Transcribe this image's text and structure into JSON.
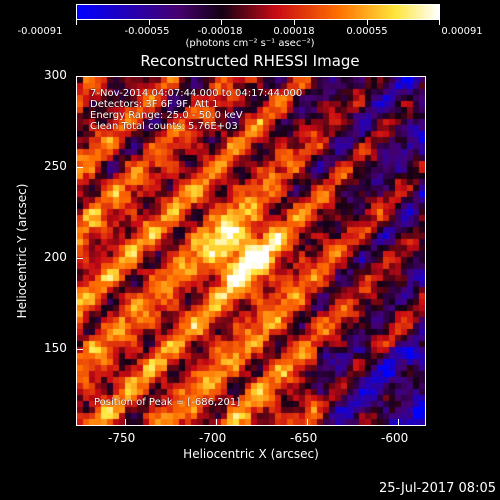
{
  "colorbar": {
    "tick_labels": [
      "-0.00091",
      "-0.00055",
      "-0.00018",
      "0.00018",
      "0.00055",
      "0.00091"
    ],
    "units": "(photons cm⁻² s⁻¹ asec⁻²)"
  },
  "title": "Reconstructed RHESSI Image",
  "annotations": {
    "time_range": "7-Nov-2014 04:07:44.000 to 04:17:44.000",
    "detectors": "Detectors: 3F 6F 9F, Att 1",
    "energy": "Energy Range: 25.0 - 50.0 keV",
    "clean": "Clean     Total counts: 5.76E+03",
    "peak": "Position of Peak = [-686,201]"
  },
  "axes": {
    "xlabel": "Heliocentric X (arcsec)",
    "ylabel": "Heliocentric Y (arcsec)",
    "xticks": [
      "-750",
      "-700",
      "-650",
      "-600"
    ],
    "yticks": [
      "300",
      "250",
      "200",
      "150"
    ]
  },
  "footer_date": "25-Jul-2017 08:05"
}
